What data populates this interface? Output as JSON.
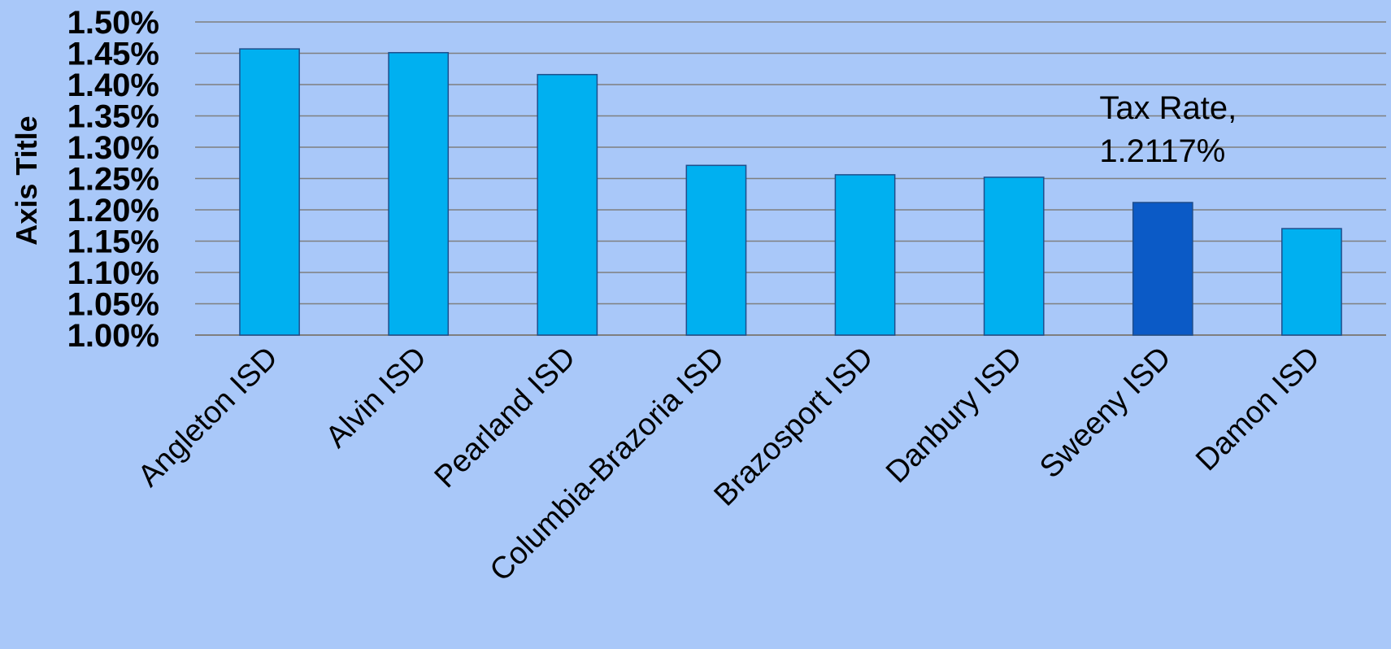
{
  "chart_data": {
    "type": "bar",
    "title": "",
    "xlabel": "",
    "ylabel": "Axis Title",
    "ylim": [
      0.01,
      0.015
    ],
    "ytick_step": 0.0005,
    "y_ticks": [
      "1.00%",
      "1.05%",
      "1.10%",
      "1.15%",
      "1.20%",
      "1.25%",
      "1.30%",
      "1.35%",
      "1.40%",
      "1.45%",
      "1.50%"
    ],
    "categories": [
      "Angleton ISD",
      "Alvin ISD",
      "Pearland ISD",
      "Columbia-Brazoria ISD",
      "Brazosport ISD",
      "Danbury ISD",
      "Sweeny ISD",
      "Damon ISD"
    ],
    "values": [
      0.01457,
      0.01451,
      0.01416,
      0.01271,
      0.01256,
      0.01252,
      0.012117,
      0.0117
    ],
    "highlight_index": 6,
    "grid": true,
    "annotation": {
      "index": 6,
      "line1": "Tax Rate,",
      "line2": "1.2117%"
    },
    "colors": {
      "background": "#a9c8f9",
      "bar": "#00b0f0",
      "bar_highlight": "#0b5ac6",
      "bar_edge": "#1f4e8c",
      "grid": "#7f7f7f"
    }
  }
}
